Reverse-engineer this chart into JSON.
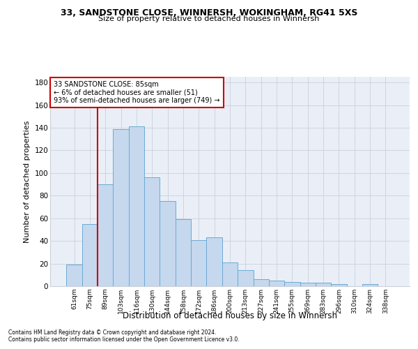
{
  "title1": "33, SANDSTONE CLOSE, WINNERSH, WOKINGHAM, RG41 5XS",
  "title2": "Size of property relative to detached houses in Winnersh",
  "xlabel": "Distribution of detached houses by size in Winnersh",
  "ylabel": "Number of detached properties",
  "categories": [
    "61sqm",
    "75sqm",
    "89sqm",
    "103sqm",
    "116sqm",
    "130sqm",
    "144sqm",
    "158sqm",
    "172sqm",
    "186sqm",
    "200sqm",
    "213sqm",
    "227sqm",
    "241sqm",
    "255sqm",
    "269sqm",
    "283sqm",
    "296sqm",
    "310sqm",
    "324sqm",
    "338sqm"
  ],
  "values": [
    19,
    55,
    90,
    139,
    141,
    96,
    75,
    59,
    41,
    43,
    21,
    14,
    6,
    5,
    4,
    3,
    3,
    2,
    0,
    2,
    0
  ],
  "bar_color": "#c5d8ee",
  "bar_edge_color": "#6aaad4",
  "grid_color": "#c8d0dc",
  "vline_x": 1.5,
  "vline_color": "#cc0000",
  "annotation_line1": "33 SANDSTONE CLOSE: 85sqm",
  "annotation_line2": "← 6% of detached houses are smaller (51)",
  "annotation_line3": "93% of semi-detached houses are larger (749) →",
  "annotation_box_color": "#cc0000",
  "footnote1": "Contains HM Land Registry data © Crown copyright and database right 2024.",
  "footnote2": "Contains public sector information licensed under the Open Government Licence v3.0.",
  "ylim": [
    0,
    185
  ],
  "yticks": [
    0,
    20,
    40,
    60,
    80,
    100,
    120,
    140,
    160,
    180
  ],
  "background_color": "#eaeff7"
}
